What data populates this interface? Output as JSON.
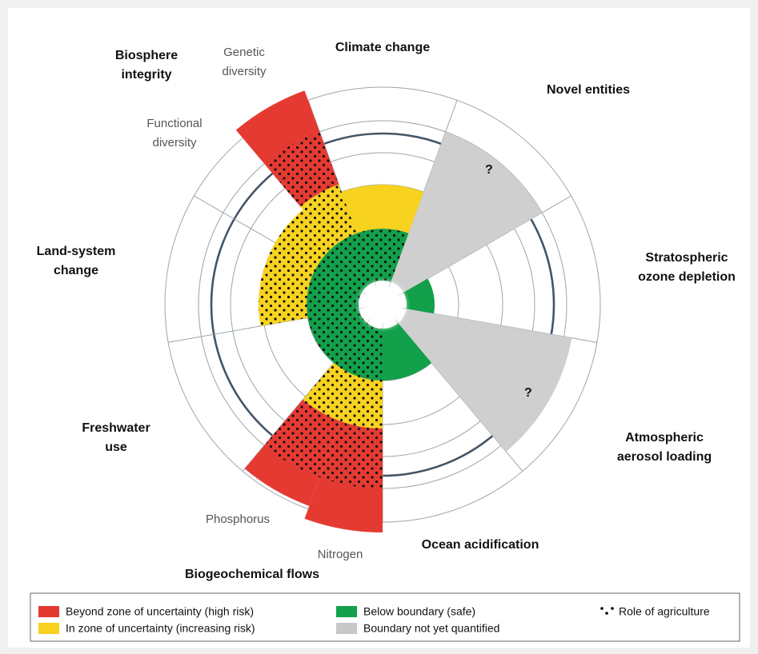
{
  "labels": {
    "climate_change": [
      "Climate change"
    ],
    "novel_entities": [
      "Novel entities"
    ],
    "ozone": [
      "Stratospheric",
      "ozone depletion"
    ],
    "aerosol": [
      "Atmospheric",
      "aerosol loading"
    ],
    "ocean": [
      "Ocean acidification"
    ],
    "biogeochemical": [
      "Biogeochemical flows"
    ],
    "nitrogen": [
      "Nitrogen"
    ],
    "phosphorus": [
      "Phosphorus"
    ],
    "freshwater": [
      "Freshwater",
      "use"
    ],
    "land": [
      "Land-system",
      "change"
    ],
    "biosphere": [
      "Biosphere",
      "integrity"
    ],
    "functional": [
      "Functional",
      "diversity"
    ],
    "genetic": [
      "Genetic",
      "diversity"
    ]
  },
  "question_marks": [
    "?",
    "?"
  ],
  "legend": {
    "high_risk": "Beyond zone of uncertainty (high risk)",
    "increasing_risk": "In zone of uncertainty (increasing risk)",
    "safe": "Below boundary (safe)",
    "not_quantified": "Boundary not yet quantified",
    "agriculture": "Role of agriculture"
  }
}
